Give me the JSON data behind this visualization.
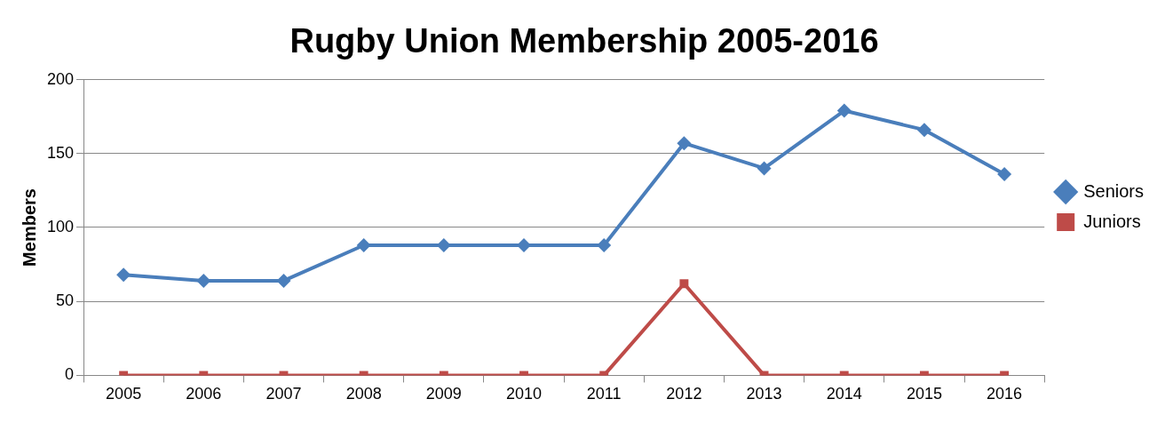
{
  "chart_data": {
    "type": "line",
    "title": "Rugby Union Membership 2005-2016",
    "ylabel": "Members",
    "categories": [
      "2005",
      "2006",
      "2007",
      "2008",
      "2009",
      "2010",
      "2011",
      "2012",
      "2013",
      "2014",
      "2015",
      "2016"
    ],
    "series": [
      {
        "name": "Seniors",
        "color": "#4a7ebb",
        "marker": "diamond",
        "values": [
          68,
          64,
          64,
          88,
          88,
          88,
          88,
          157,
          140,
          179,
          166,
          136
        ]
      },
      {
        "name": "Juniors",
        "color": "#be4b48",
        "marker": "square",
        "values": [
          0,
          0,
          0,
          0,
          0,
          0,
          0,
          62,
          0,
          0,
          0,
          0
        ]
      }
    ],
    "ylim": [
      0,
      200
    ],
    "yticks": [
      0,
      50,
      100,
      150,
      200
    ],
    "grid": "y",
    "legend": "right",
    "line_style": "solid"
  }
}
